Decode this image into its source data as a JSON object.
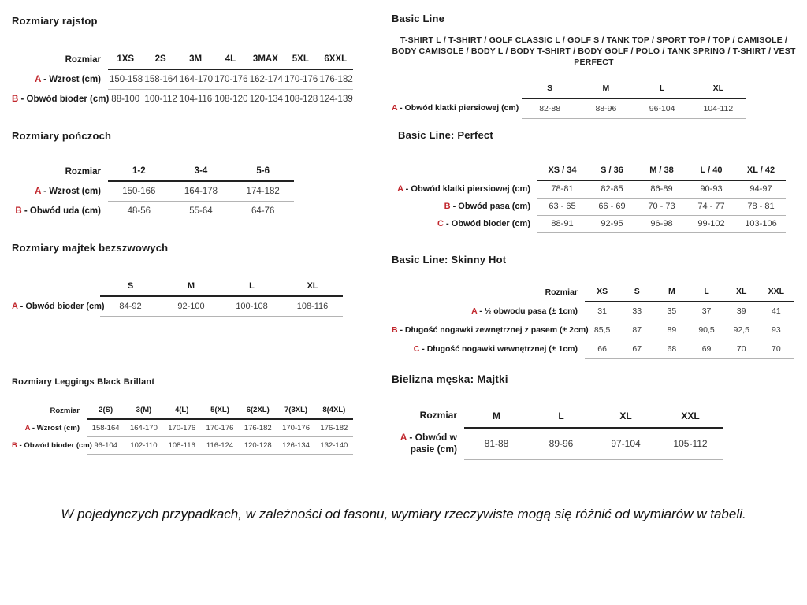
{
  "colors": {
    "accent": "#c1272d"
  },
  "note": "W pojedynczych przypadkach, w zależności od fasonu, wymiary rzeczywiste mogą się różnić od wymiarów w tabeli.",
  "sections": {
    "rajstop": {
      "title": "Rozmiary rajstop",
      "table": {
        "corner_label": "Rozmiar",
        "columns": [
          "1XS",
          "2S",
          "3M",
          "4L",
          "3MAX",
          "5XL",
          "6XXL"
        ],
        "rows": [
          {
            "letter": "A",
            "label": "Wzrost (cm)",
            "values": [
              "150-158",
              "158-164",
              "164-170",
              "170-176",
              "162-174",
              "170-176",
              "176-182"
            ]
          },
          {
            "letter": "B",
            "label": "Obwód bioder (cm)",
            "values": [
              "88-100",
              "100-112",
              "104-116",
              "108-120",
              "120-134",
              "108-128",
              "124-139"
            ]
          }
        ]
      }
    },
    "ponczoch": {
      "title": "Rozmiary pończoch",
      "table": {
        "corner_label": "Rozmiar",
        "columns": [
          "1-2",
          "3-4",
          "5-6"
        ],
        "rows": [
          {
            "letter": "A",
            "label": "Wzrost (cm)",
            "values": [
              "150-166",
              "164-178",
              "174-182"
            ]
          },
          {
            "letter": "B",
            "label": "Obwód uda (cm)",
            "values": [
              "48-56",
              "55-64",
              "64-76"
            ]
          }
        ]
      }
    },
    "majtek": {
      "title": "Rozmiary majtek bezszwowych",
      "table": {
        "corner_label": "",
        "columns": [
          "S",
          "M",
          "L",
          "XL"
        ],
        "rows": [
          {
            "letter": "A",
            "label": "Obwód bioder (cm)",
            "values": [
              "84-92",
              "92-100",
              "100-108",
              "108-116"
            ]
          }
        ]
      }
    },
    "leggings": {
      "title": "Rozmiary Leggings Black Brillant",
      "table": {
        "corner_label": "Rozmiar",
        "columns": [
          "2(S)",
          "3(M)",
          "4(L)",
          "5(XL)",
          "6(2XL)",
          "7(3XL)",
          "8(4XL)"
        ],
        "rows": [
          {
            "letter": "A",
            "label": "Wzrost (cm)",
            "values": [
              "158-164",
              "164-170",
              "170-176",
              "170-176",
              "176-182",
              "170-176",
              "176-182"
            ]
          },
          {
            "letter": "B",
            "label": "Obwód bioder (cm)",
            "values": [
              "96-104",
              "102-110",
              "108-116",
              "116-124",
              "120-128",
              "126-134",
              "132-140"
            ]
          }
        ]
      }
    },
    "basic_line": {
      "title": "Basic Line",
      "description": "T-SHIRT L / T-SHIRT / GOLF CLASSIC L / GOLF S / TANK TOP / SPORT TOP / TOP / CAMISOLE / BODY CAMISOLE / BODY L / BODY T-SHIRT / BODY GOLF / POLO / TANK SPRING / T-SHIRT / VEST PERFECT",
      "table": {
        "corner_label": "",
        "columns": [
          "S",
          "M",
          "L",
          "XL"
        ],
        "rows": [
          {
            "letter": "A",
            "label": "Obwód klatki piersiowej (cm)",
            "values": [
              "82-88",
              "88-96",
              "96-104",
              "104-112"
            ]
          }
        ]
      }
    },
    "perfect": {
      "title": "Basic Line: Perfect",
      "table": {
        "corner_label": "",
        "columns": [
          "XS / 34",
          "S / 36",
          "M / 38",
          "L / 40",
          "XL / 42"
        ],
        "rows": [
          {
            "letter": "A",
            "label": "Obwód klatki piersiowej (cm)",
            "values": [
              "78-81",
              "82-85",
              "86-89",
              "90-93",
              "94-97"
            ]
          },
          {
            "letter": "B",
            "label": "Obwód pasa (cm)",
            "values": [
              "63 - 65",
              "66 - 69",
              "70 - 73",
              "74 - 77",
              "78 - 81"
            ]
          },
          {
            "letter": "C",
            "label": "Obwód bioder (cm)",
            "values": [
              "88-91",
              "92-95",
              "96-98",
              "99-102",
              "103-106"
            ]
          }
        ]
      }
    },
    "skinny": {
      "title": "Basic Line: Skinny Hot",
      "table": {
        "corner_label": "Rozmiar",
        "columns": [
          "XS",
          "S",
          "M",
          "L",
          "XL",
          "XXL"
        ],
        "rows": [
          {
            "letter": "A",
            "label": "½ obwodu pasa (± 1cm)",
            "values": [
              "31",
              "33",
              "35",
              "37",
              "39",
              "41"
            ]
          },
          {
            "letter": "B",
            "label": "Długość nogawki zewnętrznej z pasem (± 2cm)",
            "values": [
              "85,5",
              "87",
              "89",
              "90,5",
              "92,5",
              "93"
            ]
          },
          {
            "letter": "C",
            "label": "Długość nogawki wewnętrznej (± 1cm)",
            "values": [
              "66",
              "67",
              "68",
              "69",
              "70",
              "70"
            ]
          }
        ]
      }
    },
    "majtki_meskie": {
      "title": "Bielizna męska: Majtki",
      "table": {
        "corner_label": "Rozmiar",
        "columns": [
          "M",
          "L",
          "XL",
          "XXL"
        ],
        "rows": [
          {
            "letter": "A",
            "label": "Obwód w pasie (cm)",
            "values": [
              "81-88",
              "89-96",
              "97-104",
              "105-112"
            ]
          }
        ]
      }
    }
  }
}
